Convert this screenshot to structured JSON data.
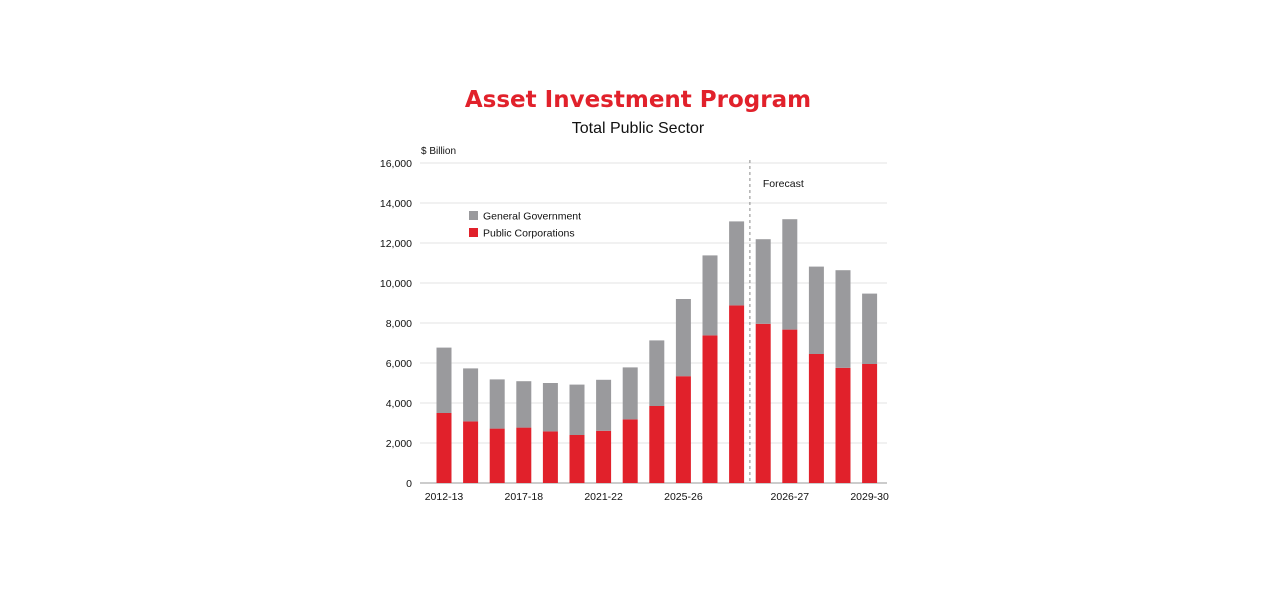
{
  "chart_data": {
    "type": "bar",
    "stacked": true,
    "title": "Asset Investment Program",
    "subtitle": "Total Public Sector",
    "ylabel": "$ Billion",
    "xlabel": "",
    "ylim": [
      0,
      16000
    ],
    "yticks": [
      0,
      2000,
      4000,
      6000,
      8000,
      10000,
      12000,
      14000,
      16000
    ],
    "ytick_labels": [
      "0",
      "2,000",
      "4,000",
      "6,000",
      "8,000",
      "10,000",
      "12,000",
      "14,000",
      "16,000"
    ],
    "categories": [
      "2012-13",
      "",
      "",
      "2017-18",
      "",
      "",
      "2021-22",
      "",
      "",
      "2025-26",
      "",
      "",
      "2026-27",
      "",
      "",
      "",
      "2029-30"
    ],
    "xtick_labels": [
      {
        "index": 0,
        "label": "2012-13"
      },
      {
        "index": 3,
        "label": "2017-18"
      },
      {
        "index": 6,
        "label": "2021-22"
      },
      {
        "index": 9,
        "label": "2025-26"
      },
      {
        "index": 13,
        "label": "2026-27"
      },
      {
        "index": 16,
        "label": "2029-30"
      }
    ],
    "series": [
      {
        "name": "Public Corporations",
        "color": "#e1212b",
        "values": [
          3500,
          3080,
          2720,
          2770,
          2580,
          2400,
          2610,
          3180,
          3850,
          5340,
          7380,
          8880,
          7960,
          7670,
          6450,
          5760,
          5950
        ]
      },
      {
        "name": "General Government",
        "color": "#9a9a9d",
        "values": [
          3270,
          2650,
          2460,
          2320,
          2420,
          2520,
          2550,
          2600,
          3280,
          3860,
          4000,
          4200,
          4230,
          5520,
          4370,
          4880,
          3520
        ]
      }
    ],
    "annotations": [
      {
        "text": "Forecast",
        "after_index": 11
      }
    ],
    "legend": {
      "position": "top-left",
      "order": [
        "General Government",
        "Public Corporations"
      ]
    },
    "grid": true,
    "title_color": "#e1212b"
  }
}
